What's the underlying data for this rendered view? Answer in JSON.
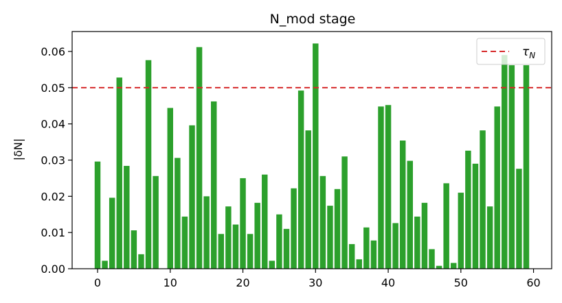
{
  "chart_data": {
    "type": "bar",
    "title": "N_mod stage",
    "xlabel": "",
    "ylabel": "|δN|",
    "xlim": [
      -3.5,
      62.5
    ],
    "ylim": [
      0,
      0.0655
    ],
    "x_ticks": [
      0,
      10,
      20,
      30,
      40,
      50,
      60
    ],
    "y_ticks": [
      0.0,
      0.01,
      0.02,
      0.03,
      0.04,
      0.05,
      0.06
    ],
    "x_tick_labels": [
      "0",
      "10",
      "20",
      "30",
      "40",
      "50",
      "60"
    ],
    "y_tick_labels": [
      "0.00",
      "0.01",
      "0.02",
      "0.03",
      "0.04",
      "0.05",
      "0.06"
    ],
    "bar_color": "#2ca02c",
    "x": [
      0,
      1,
      2,
      3,
      4,
      5,
      6,
      7,
      8,
      9,
      10,
      11,
      12,
      13,
      14,
      15,
      16,
      17,
      18,
      19,
      20,
      21,
      22,
      23,
      24,
      25,
      26,
      27,
      28,
      29,
      30,
      31,
      32,
      33,
      34,
      35,
      36,
      37,
      38,
      39,
      40,
      41,
      42,
      43,
      44,
      45,
      46,
      47,
      48,
      49,
      50,
      51,
      52,
      53,
      54,
      55,
      56,
      57,
      58,
      59
    ],
    "values": [
      0.0296,
      0.0022,
      0.0196,
      0.0528,
      0.0284,
      0.0106,
      0.004,
      0.0576,
      0.0256,
      0.0,
      0.0444,
      0.0306,
      0.0144,
      0.0396,
      0.0612,
      0.02,
      0.0462,
      0.0096,
      0.0172,
      0.0122,
      0.025,
      0.0096,
      0.0182,
      0.026,
      0.0022,
      0.015,
      0.011,
      0.0222,
      0.0492,
      0.0382,
      0.0622,
      0.0256,
      0.0174,
      0.022,
      0.031,
      0.0068,
      0.0026,
      0.0114,
      0.0078,
      0.0448,
      0.0452,
      0.0126,
      0.0354,
      0.0298,
      0.0144,
      0.0182,
      0.0054,
      0.0008,
      0.0236,
      0.0016,
      0.021,
      0.0326,
      0.029,
      0.0382,
      0.0172,
      0.0448,
      0.059,
      0.0562,
      0.0276,
      0.0562
    ],
    "reference_line": {
      "label": "τ",
      "label_subscript": "N",
      "value": 0.05,
      "color": "#d62728",
      "style": "dashed"
    },
    "legend": {
      "position": "top-right"
    },
    "grid": false
  }
}
